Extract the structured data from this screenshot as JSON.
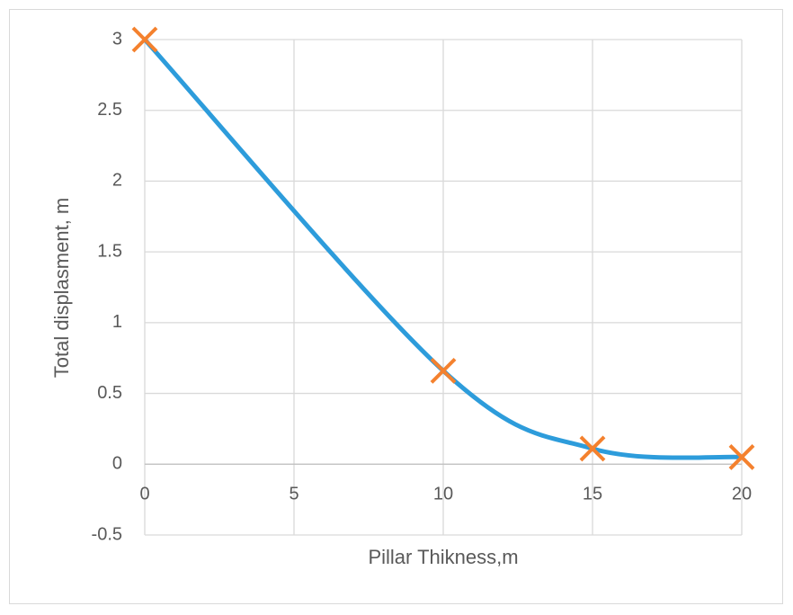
{
  "chart_data": {
    "type": "scatter",
    "x_label": "Pillar Thikness,m",
    "y_label": "Total displasment, m",
    "x": [
      0,
      10,
      15,
      20
    ],
    "values": [
      3,
      0.66,
      0.11,
      0.05
    ],
    "color": "#2d9cdb",
    "marker_color": "#f4812e",
    "smooth": true,
    "xlim": [
      0,
      20
    ],
    "xticks": [
      0,
      5,
      10,
      15,
      20
    ],
    "ylim": [
      -0.5,
      3
    ],
    "yticks": [
      -0.5,
      0,
      0.5,
      1,
      1.5,
      2,
      2.5,
      3
    ],
    "grid": true
  }
}
